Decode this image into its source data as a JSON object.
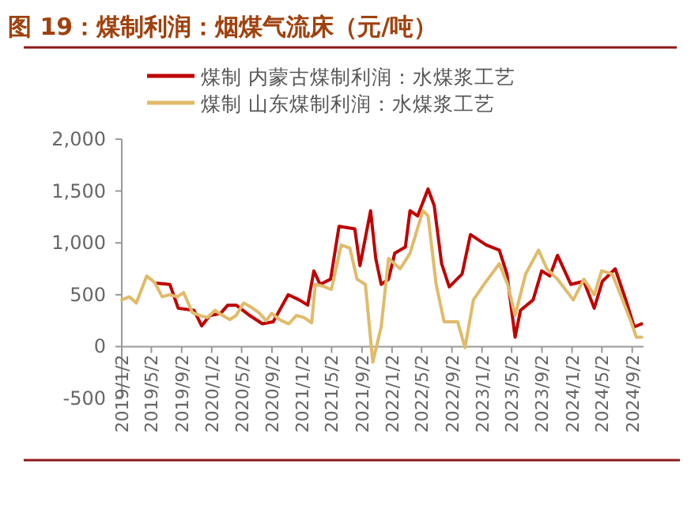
{
  "chart_data": {
    "type": "line",
    "title": "图 19：煤制利润：烟煤气流床（元/吨）",
    "xlim": [
      "2019-01-02",
      "2024-10-18"
    ],
    "xticks": [
      {
        "value": "2019-01-02",
        "label": "2019/1/2"
      },
      {
        "value": "2019-05-02",
        "label": "2019/5/2"
      },
      {
        "value": "2019-09-02",
        "label": "2019/9/2"
      },
      {
        "value": "2020-01-02",
        "label": "2020/1/2"
      },
      {
        "value": "2020-05-02",
        "label": "2020/5/2"
      },
      {
        "value": "2020-09-02",
        "label": "2020/9/2"
      },
      {
        "value": "2021-01-02",
        "label": "2021/1/2"
      },
      {
        "value": "2021-05-02",
        "label": "2021/5/2"
      },
      {
        "value": "2021-09-02",
        "label": "2021/9/2"
      },
      {
        "value": "2022-01-02",
        "label": "2022/1/2"
      },
      {
        "value": "2022-05-02",
        "label": "2022/5/2"
      },
      {
        "value": "2022-09-02",
        "label": "2022/9/2"
      },
      {
        "value": "2023-01-02",
        "label": "2023/1/2"
      },
      {
        "value": "2023-05-02",
        "label": "2023/5/2"
      },
      {
        "value": "2023-09-02",
        "label": "2023/9/2"
      },
      {
        "value": "2024-01-02",
        "label": "2024/1/2"
      },
      {
        "value": "2024-05-02",
        "label": "2024/5/2"
      },
      {
        "value": "2024-09-02",
        "label": "2024/9/2"
      }
    ],
    "ylim": [
      -500,
      2000
    ],
    "yticks": [
      {
        "value": -500,
        "label": "-500"
      },
      {
        "value": 0,
        "label": "0"
      },
      {
        "value": 500,
        "label": "500"
      },
      {
        "value": 1000,
        "label": "1,000"
      },
      {
        "value": 1500,
        "label": "1,500"
      },
      {
        "value": 2000,
        "label": "2,000"
      }
    ],
    "legend": "top",
    "grid": false,
    "marker": "none",
    "line_style": "solid",
    "series": [
      {
        "name": "煤制 内蒙古煤制利润：水煤浆工艺",
        "color": "#c00000",
        "x": [
          "2019-05-25",
          "2019-07-16",
          "2019-08-19",
          "2019-10-22",
          "2019-11-22",
          "2019-12-25",
          "2020-02-07",
          "2020-03-07",
          "2020-04-10",
          "2020-06-04",
          "2020-07-25",
          "2020-09-07",
          "2020-11-07",
          "2020-12-22",
          "2021-01-25",
          "2021-02-19",
          "2021-03-16",
          "2021-04-28",
          "2021-06-01",
          "2021-08-04",
          "2021-08-25",
          "2021-10-07",
          "2021-10-28",
          "2021-11-19",
          "2021-12-19",
          "2022-01-13",
          "2022-02-25",
          "2022-03-16",
          "2022-04-16",
          "2022-05-28",
          "2022-06-22",
          "2022-07-22",
          "2022-08-22",
          "2022-10-13",
          "2022-11-16",
          "2023-01-19",
          "2023-03-13",
          "2023-04-13",
          "2023-05-16",
          "2023-06-07",
          "2023-07-28",
          "2023-09-01",
          "2023-10-04",
          "2023-11-04",
          "2023-12-28",
          "2024-02-19",
          "2024-04-01",
          "2024-05-04",
          "2024-06-25",
          "2024-08-07",
          "2024-09-10",
          "2024-10-10"
        ],
        "values": [
          610,
          600,
          370,
          350,
          200,
          300,
          320,
          400,
          400,
          300,
          220,
          240,
          500,
          450,
          400,
          730,
          600,
          650,
          1160,
          1135,
          780,
          1310,
          850,
          600,
          650,
          900,
          960,
          1310,
          1260,
          1520,
          1360,
          800,
          575,
          700,
          1080,
          980,
          930,
          700,
          90,
          350,
          450,
          730,
          680,
          880,
          600,
          630,
          370,
          630,
          750,
          450,
          190,
          220
        ]
      },
      {
        "name": "煤制 山东煤制利润：水煤浆工艺",
        "color": "#e0bb6a",
        "x": [
          "2019-01-02",
          "2019-02-02",
          "2019-03-02",
          "2019-04-13",
          "2019-05-15",
          "2019-06-15",
          "2019-07-15",
          "2019-08-15",
          "2019-09-10",
          "2019-10-15",
          "2019-11-15",
          "2019-12-15",
          "2020-01-15",
          "2020-02-15",
          "2020-03-15",
          "2020-04-10",
          "2020-05-10",
          "2020-06-10",
          "2020-07-10",
          "2020-08-10",
          "2020-09-01",
          "2020-10-10",
          "2020-11-10",
          "2020-12-10",
          "2021-01-10",
          "2021-02-10",
          "2021-02-25",
          "2021-04-01",
          "2021-05-01",
          "2021-06-10",
          "2021-07-15",
          "2021-08-13",
          "2021-09-16",
          "2021-10-16",
          "2021-11-19",
          "2021-12-19",
          "2022-02-04",
          "2022-03-16",
          "2022-05-07",
          "2022-05-28",
          "2022-06-30",
          "2022-08-01",
          "2022-09-25",
          "2022-10-25",
          "2022-11-28",
          "2023-01-10",
          "2023-03-13",
          "2023-04-16",
          "2023-05-16",
          "2023-06-28",
          "2023-08-19",
          "2023-09-22",
          "2023-11-04",
          "2024-01-07",
          "2024-02-19",
          "2024-04-01",
          "2024-05-01",
          "2024-06-13",
          "2024-07-25",
          "2024-08-28",
          "2024-09-19",
          "2024-10-10"
        ],
        "values": [
          450,
          480,
          420,
          680,
          620,
          480,
          500,
          480,
          520,
          330,
          300,
          280,
          350,
          300,
          260,
          300,
          420,
          380,
          330,
          250,
          320,
          250,
          220,
          300,
          280,
          230,
          600,
          580,
          550,
          980,
          950,
          650,
          600,
          -150,
          190,
          850,
          750,
          900,
          1310,
          1260,
          600,
          240,
          240,
          -10,
          450,
          600,
          800,
          600,
          300,
          700,
          930,
          750,
          650,
          450,
          650,
          500,
          730,
          700,
          450,
          240,
          90,
          90
        ]
      }
    ]
  }
}
